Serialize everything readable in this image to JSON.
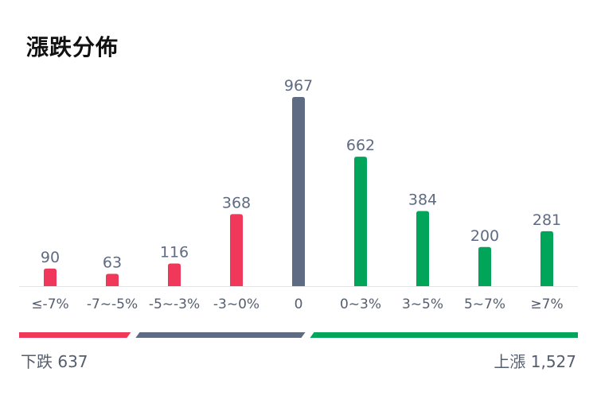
{
  "title": "漲跌分佈",
  "chart_data": {
    "type": "bar",
    "categories": [
      "≤-7%",
      "-7~-5%",
      "-5~-3%",
      "-3~0%",
      "0",
      "0~3%",
      "3~5%",
      "5~7%",
      "≥7%"
    ],
    "values": [
      90,
      63,
      116,
      368,
      967,
      662,
      384,
      200,
      281
    ],
    "value_labels": [
      "90",
      "63",
      "116",
      "368",
      "967",
      "662",
      "384",
      "200",
      "281"
    ],
    "groups": [
      "down",
      "down",
      "down",
      "down",
      "flat",
      "up",
      "up",
      "up",
      "up"
    ],
    "ylim": [
      0,
      967
    ],
    "grid": false,
    "colors": {
      "down": "#f0385a",
      "flat": "#5f6b82",
      "up": "#00a559"
    }
  },
  "summary": {
    "down_label": "下跌",
    "down_count": "637",
    "down_text": "下跌 637",
    "up_label": "上漲",
    "up_count": "1,527",
    "up_text": "上漲 1,527"
  }
}
